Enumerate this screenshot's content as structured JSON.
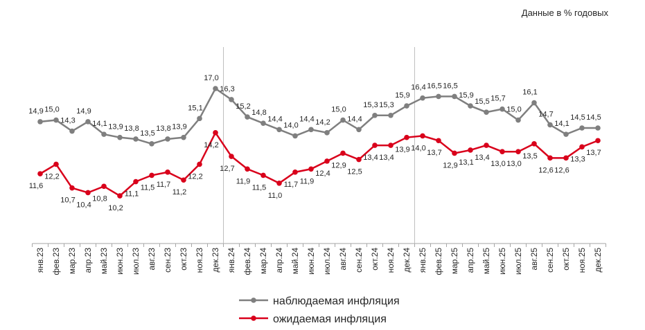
{
  "chart_data": {
    "type": "line",
    "note": "Данные в % годовых",
    "categories": [
      "янв.23",
      "фев.23",
      "мар.23",
      "апр.23",
      "май.23",
      "июн.23",
      "июл.23",
      "авг.23",
      "сен.23",
      "окт.23",
      "ноя.23",
      "дек.23",
      "янв.24",
      "фев.24",
      "мар.24",
      "апр.24",
      "май.24",
      "июн.24",
      "июл.24",
      "авг.24",
      "сен.24",
      "окт.24",
      "ноя.24",
      "дек.24",
      "янв.25",
      "фев.25",
      "мар.25",
      "апр.25",
      "май.25",
      "июн.25",
      "июл.25",
      "авг.25",
      "сен.25",
      "окт.25",
      "ноя.25",
      "дек.25"
    ],
    "series": [
      {
        "name": "наблюдаемая инфляция",
        "color": "#7f7f7f",
        "values": [
          14.9,
          15.0,
          14.3,
          14.9,
          14.1,
          13.9,
          13.8,
          13.5,
          13.8,
          13.9,
          15.1,
          17.0,
          16.3,
          15.2,
          14.8,
          14.4,
          14.0,
          14.4,
          14.2,
          15.0,
          14.4,
          15.3,
          15.3,
          15.9,
          16.4,
          16.5,
          16.5,
          15.9,
          15.5,
          15.7,
          15.0,
          16.1,
          14.7,
          14.1,
          14.5,
          14.5
        ]
      },
      {
        "name": "ожидаемая инфляция",
        "color": "#d9001b",
        "values": [
          11.6,
          12.2,
          10.7,
          10.4,
          10.8,
          10.2,
          11.1,
          11.5,
          11.7,
          11.2,
          12.2,
          14.2,
          12.7,
          11.9,
          11.5,
          11.0,
          11.7,
          11.9,
          12.4,
          12.9,
          12.5,
          13.4,
          13.4,
          13.9,
          14.0,
          13.7,
          12.9,
          13.1,
          13.4,
          13.0,
          13.0,
          13.5,
          12.6,
          12.6,
          13.3,
          13.7
        ]
      }
    ],
    "year_separators_after": [
      "дек.23",
      "дек.24"
    ],
    "legend_placement": "bottom",
    "grid": false,
    "decimal_separator": ","
  }
}
